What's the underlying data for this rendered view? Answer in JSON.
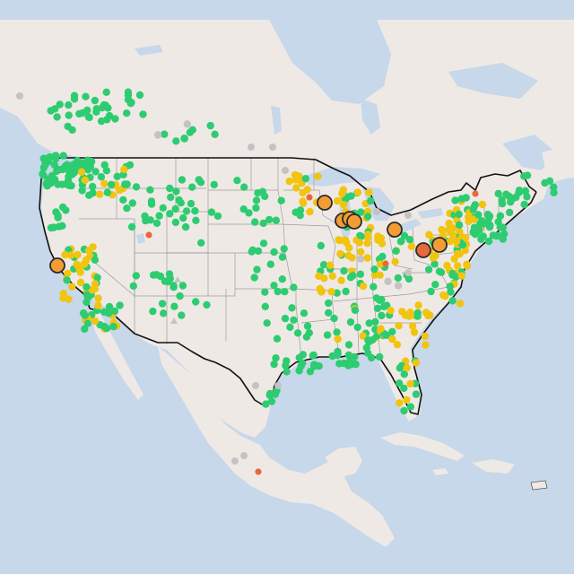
{
  "map": {
    "colors": {
      "water": "#c6d8e9",
      "land": "#efe9e6",
      "state_border": "#9c9c9c",
      "national_border": "#111111",
      "marker_outline": "#2b2b2b"
    },
    "legend_levels": [
      {
        "level": "good",
        "color": "#2ecc71"
      },
      {
        "level": "moderate",
        "color": "#f1c40f"
      },
      {
        "level": "unhealthy-sensitive",
        "color": "#f39c34"
      },
      {
        "level": "unhealthy",
        "color": "#e8683d"
      },
      {
        "level": "no-data",
        "color": "#c3c3c3"
      }
    ],
    "marker_icons": [
      "circle-marker",
      "triangle-marker"
    ]
  }
}
